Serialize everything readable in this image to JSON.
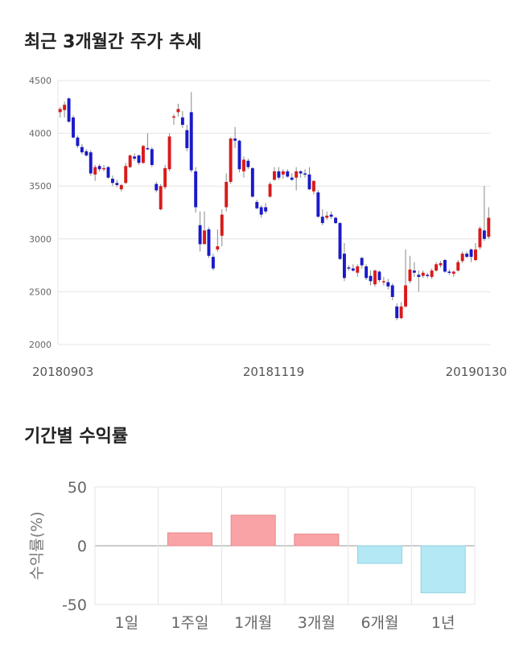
{
  "titles": {
    "price_trend": "최근 3개월간 주가 추세",
    "period_return": "기간별 수익률"
  },
  "colors": {
    "up": "#d91a1a",
    "down": "#1a1ac8",
    "wick": "#888888",
    "grid": "#e4e4e4",
    "positive_bar": "#f9a3a6",
    "positive_bar_edge": "#e88a8e",
    "negative_bar": "#b3e8f4",
    "negative_bar_edge": "#8fd2e6"
  },
  "chart_data": [
    {
      "type": "candlestick",
      "title": "최근 3개월간 주가 추세",
      "ylim": [
        2000,
        4500
      ],
      "yticks": [
        2000,
        2500,
        3000,
        3500,
        4000,
        4500
      ],
      "xtick_labels": [
        "20180903",
        "20181119",
        "20190130"
      ],
      "grid": true,
      "candles": [
        [
          4200,
          4250,
          4150,
          4230
        ],
        [
          4220,
          4300,
          4150,
          4270
        ],
        [
          4330,
          4340,
          4100,
          4110
        ],
        [
          4150,
          4170,
          3950,
          3960
        ],
        [
          3960,
          3980,
          3860,
          3880
        ],
        [
          3870,
          3900,
          3800,
          3820
        ],
        [
          3830,
          3850,
          3780,
          3790
        ],
        [
          3820,
          3840,
          3600,
          3620
        ],
        [
          3610,
          3700,
          3550,
          3680
        ],
        [
          3690,
          3710,
          3640,
          3660
        ],
        [
          3660,
          3700,
          3640,
          3670
        ],
        [
          3680,
          3690,
          3570,
          3580
        ],
        [
          3570,
          3600,
          3500,
          3530
        ],
        [
          3530,
          3560,
          3490,
          3510
        ],
        [
          3470,
          3520,
          3450,
          3510
        ],
        [
          3530,
          3720,
          3520,
          3690
        ],
        [
          3680,
          3800,
          3670,
          3790
        ],
        [
          3780,
          3810,
          3740,
          3760
        ],
        [
          3790,
          3800,
          3700,
          3720
        ],
        [
          3720,
          3890,
          3710,
          3880
        ],
        [
          3860,
          4000,
          3840,
          3850
        ],
        [
          3850,
          3870,
          3680,
          3700
        ],
        [
          3520,
          3540,
          3440,
          3460
        ],
        [
          3280,
          3520,
          3270,
          3500
        ],
        [
          3490,
          3700,
          3470,
          3670
        ],
        [
          3660,
          4000,
          3640,
          3970
        ],
        [
          4150,
          4180,
          4080,
          4160
        ],
        [
          4200,
          4280,
          4160,
          4230
        ],
        [
          4150,
          4210,
          4050,
          4080
        ],
        [
          4030,
          4080,
          3830,
          3860
        ],
        [
          4200,
          4390,
          3630,
          3650
        ],
        [
          3640,
          3680,
          3250,
          3300
        ],
        [
          3130,
          3260,
          2880,
          2950
        ],
        [
          2950,
          3260,
          2950,
          3080
        ],
        [
          3090,
          3110,
          2820,
          2840
        ],
        [
          2830,
          2860,
          2700,
          2720
        ],
        [
          2900,
          3090,
          2880,
          2930
        ],
        [
          3030,
          3280,
          2930,
          3230
        ],
        [
          3300,
          3620,
          3260,
          3540
        ],
        [
          3540,
          3960,
          3520,
          3950
        ],
        [
          3950,
          4060,
          3860,
          3930
        ],
        [
          3930,
          3940,
          3630,
          3660
        ],
        [
          3640,
          3780,
          3580,
          3750
        ],
        [
          3740,
          3760,
          3660,
          3680
        ],
        [
          3670,
          3680,
          3390,
          3400
        ],
        [
          3350,
          3370,
          3280,
          3290
        ],
        [
          3300,
          3320,
          3200,
          3230
        ],
        [
          3300,
          3340,
          3240,
          3260
        ],
        [
          3400,
          3540,
          3390,
          3520
        ],
        [
          3560,
          3680,
          3550,
          3640
        ],
        [
          3640,
          3680,
          3560,
          3580
        ],
        [
          3610,
          3660,
          3570,
          3640
        ],
        [
          3640,
          3660,
          3580,
          3590
        ],
        [
          3580,
          3620,
          3550,
          3560
        ],
        [
          3580,
          3680,
          3460,
          3640
        ],
        [
          3640,
          3650,
          3580,
          3620
        ],
        [
          3620,
          3660,
          3580,
          3610
        ],
        [
          3610,
          3680,
          3460,
          3470
        ],
        [
          3450,
          3550,
          3420,
          3550
        ],
        [
          3440,
          3460,
          3200,
          3210
        ],
        [
          3210,
          3280,
          3130,
          3150
        ],
        [
          3200,
          3260,
          3180,
          3220
        ],
        [
          3230,
          3260,
          3190,
          3210
        ],
        [
          3200,
          3210,
          3140,
          3150
        ],
        [
          3150,
          3160,
          2800,
          2810
        ],
        [
          2860,
          2960,
          2600,
          2630
        ],
        [
          2730,
          2750,
          2700,
          2720
        ],
        [
          2720,
          2760,
          2690,
          2700
        ],
        [
          2680,
          2760,
          2640,
          2740
        ],
        [
          2820,
          2830,
          2720,
          2750
        ],
        [
          2740,
          2760,
          2610,
          2630
        ],
        [
          2650,
          2700,
          2560,
          2600
        ],
        [
          2570,
          2710,
          2550,
          2700
        ],
        [
          2690,
          2700,
          2590,
          2610
        ],
        [
          2600,
          2640,
          2560,
          2600
        ],
        [
          2590,
          2620,
          2520,
          2550
        ],
        [
          2560,
          2580,
          2420,
          2450
        ],
        [
          2360,
          2390,
          2230,
          2250
        ],
        [
          2250,
          2400,
          2240,
          2360
        ],
        [
          2360,
          2900,
          2350,
          2560
        ],
        [
          2600,
          2840,
          2580,
          2710
        ],
        [
          2700,
          2780,
          2640,
          2680
        ],
        [
          2660,
          2700,
          2500,
          2640
        ],
        [
          2650,
          2700,
          2630,
          2680
        ],
        [
          2660,
          2680,
          2630,
          2650
        ],
        [
          2640,
          2720,
          2620,
          2700
        ],
        [
          2700,
          2780,
          2690,
          2760
        ],
        [
          2750,
          2790,
          2730,
          2770
        ],
        [
          2800,
          2810,
          2680,
          2690
        ],
        [
          2690,
          2710,
          2660,
          2680
        ],
        [
          2670,
          2700,
          2640,
          2690
        ],
        [
          2700,
          2800,
          2690,
          2780
        ],
        [
          2790,
          2880,
          2770,
          2860
        ],
        [
          2860,
          2880,
          2820,
          2830
        ],
        [
          2900,
          2910,
          2780,
          2830
        ],
        [
          2800,
          2960,
          2790,
          2900
        ],
        [
          2920,
          3120,
          2900,
          3100
        ],
        [
          3080,
          3500,
          2980,
          3000
        ],
        [
          3020,
          3300,
          3000,
          3200
        ]
      ]
    },
    {
      "type": "bar",
      "title": "기간별 수익률",
      "ylabel": "수익률(%)",
      "ylim": [
        -50,
        50
      ],
      "yticks": [
        -50,
        0,
        50
      ],
      "categories": [
        "1일",
        "1주일",
        "1개월",
        "3개월",
        "6개월",
        "1년"
      ],
      "values": [
        0,
        11,
        26,
        10,
        -15,
        -40
      ],
      "grid": true
    }
  ]
}
